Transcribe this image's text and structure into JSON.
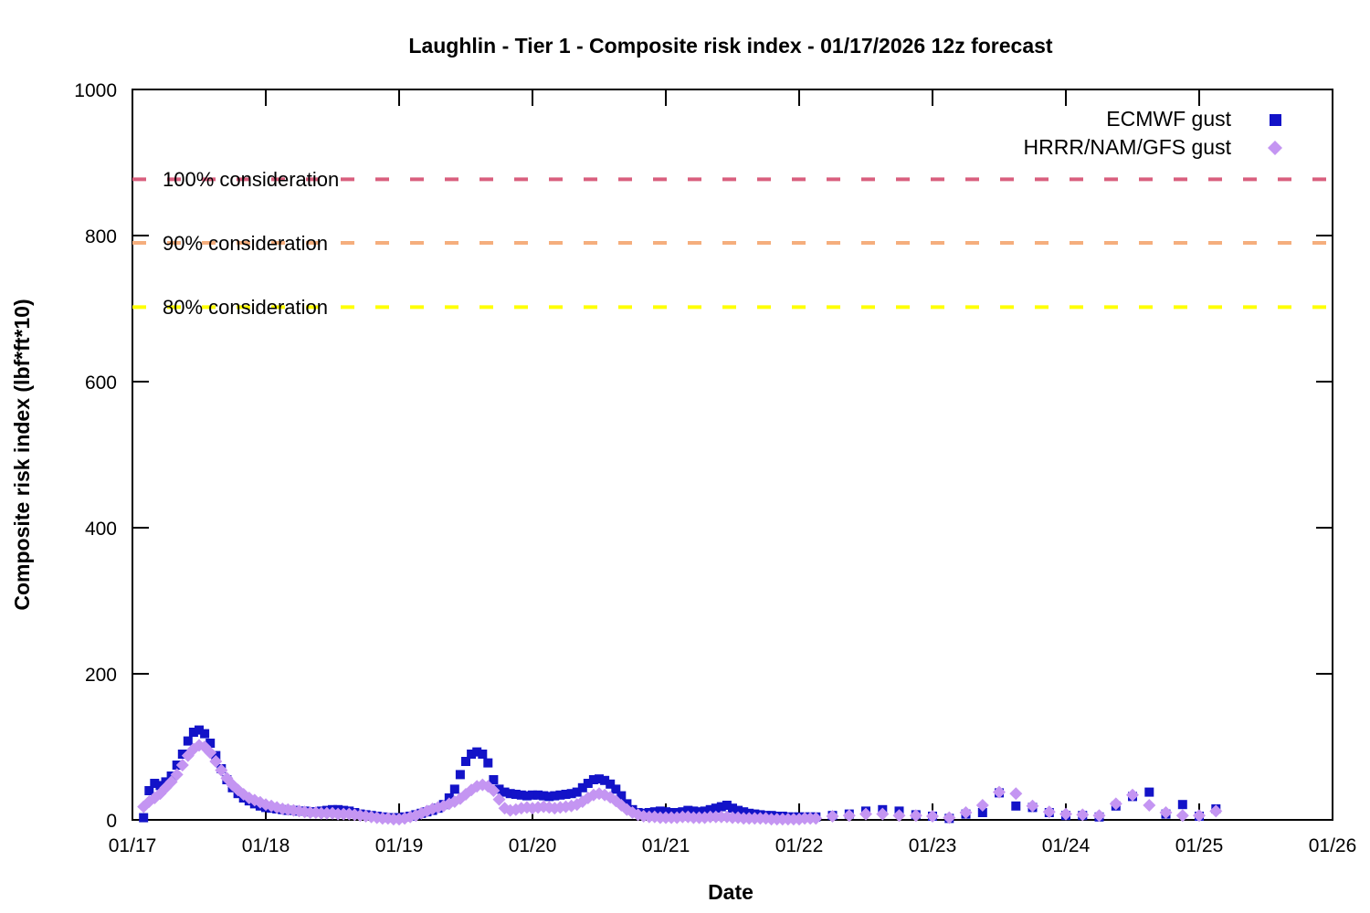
{
  "chart_data": {
    "type": "scatter",
    "title": "Laughlin - Tier 1 - Composite risk index - 01/17/2026 12z forecast",
    "xlabel": "Date",
    "ylabel": "Composite risk index (lbf*ft*10)",
    "x_unit": "hours since 01/17 00:00",
    "xlim_hours": [
      0,
      216
    ],
    "ylim": [
      0,
      1000
    ],
    "y_ticks": [
      0,
      200,
      400,
      600,
      800,
      1000
    ],
    "x_ticks": [
      {
        "hour": 0,
        "label": "01/17"
      },
      {
        "hour": 24,
        "label": "01/18"
      },
      {
        "hour": 48,
        "label": "01/19"
      },
      {
        "hour": 72,
        "label": "01/20"
      },
      {
        "hour": 96,
        "label": "01/21"
      },
      {
        "hour": 120,
        "label": "01/22"
      },
      {
        "hour": 144,
        "label": "01/23"
      },
      {
        "hour": 168,
        "label": "01/24"
      },
      {
        "hour": 192,
        "label": "01/25"
      },
      {
        "hour": 216,
        "label": "01/26"
      }
    ],
    "grid": false,
    "legend_position": "top-right-inside",
    "thresholds": [
      {
        "label": "100% consideration",
        "value": 877,
        "color": "#D95F7E",
        "style": "dashed"
      },
      {
        "label": "90% consideration",
        "value": 790,
        "color": "#F5AE7D",
        "style": "dashed"
      },
      {
        "label": "80% consideration",
        "value": 702,
        "color": "#FFFF00",
        "style": "dashed"
      }
    ],
    "series": [
      {
        "name": "ECMWF gust",
        "marker": "square",
        "color": "#1313C8",
        "points_hour_value": [
          [
            2,
            3
          ],
          [
            3,
            40
          ],
          [
            4,
            50
          ],
          [
            5,
            47
          ],
          [
            6,
            52
          ],
          [
            7,
            60
          ],
          [
            8,
            75
          ],
          [
            9,
            90
          ],
          [
            10,
            108
          ],
          [
            11,
            120
          ],
          [
            12,
            123
          ],
          [
            13,
            118
          ],
          [
            14,
            105
          ],
          [
            15,
            88
          ],
          [
            16,
            70
          ],
          [
            17,
            55
          ],
          [
            18,
            44
          ],
          [
            19,
            36
          ],
          [
            20,
            30
          ],
          [
            21,
            26
          ],
          [
            22,
            22
          ],
          [
            23,
            19
          ],
          [
            24,
            17
          ],
          [
            25,
            16
          ],
          [
            26,
            15
          ],
          [
            27,
            14
          ],
          [
            28,
            13
          ],
          [
            29,
            13
          ],
          [
            30,
            12
          ],
          [
            31,
            12
          ],
          [
            32,
            11
          ],
          [
            33,
            11
          ],
          [
            34,
            12
          ],
          [
            35,
            13
          ],
          [
            36,
            14
          ],
          [
            37,
            14
          ],
          [
            38,
            13
          ],
          [
            39,
            12
          ],
          [
            40,
            10
          ],
          [
            41,
            8
          ],
          [
            42,
            7
          ],
          [
            43,
            6
          ],
          [
            44,
            5
          ],
          [
            45,
            4
          ],
          [
            46,
            3
          ],
          [
            47,
            3
          ],
          [
            48,
            3
          ],
          [
            49,
            4
          ],
          [
            50,
            5
          ],
          [
            51,
            7
          ],
          [
            52,
            9
          ],
          [
            53,
            11
          ],
          [
            54,
            13
          ],
          [
            55,
            16
          ],
          [
            56,
            21
          ],
          [
            57,
            30
          ],
          [
            58,
            42
          ],
          [
            59,
            62
          ],
          [
            60,
            80
          ],
          [
            61,
            90
          ],
          [
            62,
            93
          ],
          [
            63,
            90
          ],
          [
            64,
            78
          ],
          [
            65,
            55
          ],
          [
            66,
            42
          ],
          [
            67,
            38
          ],
          [
            68,
            36
          ],
          [
            69,
            35
          ],
          [
            70,
            34
          ],
          [
            71,
            33
          ],
          [
            72,
            34
          ],
          [
            73,
            34
          ],
          [
            74,
            33
          ],
          [
            75,
            32
          ],
          [
            76,
            33
          ],
          [
            77,
            34
          ],
          [
            78,
            35
          ],
          [
            79,
            36
          ],
          [
            80,
            38
          ],
          [
            81,
            44
          ],
          [
            82,
            50
          ],
          [
            83,
            55
          ],
          [
            84,
            56
          ],
          [
            85,
            54
          ],
          [
            86,
            49
          ],
          [
            87,
            42
          ],
          [
            88,
            33
          ],
          [
            89,
            22
          ],
          [
            90,
            14
          ],
          [
            91,
            10
          ],
          [
            92,
            9
          ],
          [
            93,
            10
          ],
          [
            94,
            11
          ],
          [
            95,
            12
          ],
          [
            96,
            11
          ],
          [
            97,
            10
          ],
          [
            98,
            10
          ],
          [
            99,
            11
          ],
          [
            100,
            13
          ],
          [
            101,
            12
          ],
          [
            102,
            11
          ],
          [
            103,
            12
          ],
          [
            104,
            14
          ],
          [
            105,
            16
          ],
          [
            106,
            18
          ],
          [
            107,
            20
          ],
          [
            108,
            16
          ],
          [
            109,
            13
          ],
          [
            110,
            11
          ],
          [
            111,
            9
          ],
          [
            112,
            8
          ],
          [
            113,
            7
          ],
          [
            114,
            6
          ],
          [
            115,
            6
          ],
          [
            116,
            5
          ],
          [
            117,
            5
          ],
          [
            118,
            4
          ],
          [
            119,
            4
          ],
          [
            120,
            4
          ],
          [
            121,
            4
          ],
          [
            122,
            4
          ],
          [
            123,
            4
          ],
          [
            126,
            6
          ],
          [
            129,
            8
          ],
          [
            132,
            12
          ],
          [
            135,
            14
          ],
          [
            138,
            12
          ],
          [
            141,
            7
          ],
          [
            144,
            5
          ],
          [
            147,
            2
          ],
          [
            150,
            8
          ],
          [
            153,
            10
          ],
          [
            156,
            37
          ],
          [
            159,
            19
          ],
          [
            162,
            17
          ],
          [
            165,
            10
          ],
          [
            168,
            6
          ],
          [
            171,
            6
          ],
          [
            174,
            4
          ],
          [
            177,
            19
          ],
          [
            180,
            32
          ],
          [
            183,
            38
          ],
          [
            186,
            8
          ],
          [
            189,
            21
          ],
          [
            192,
            5
          ],
          [
            195,
            15
          ]
        ]
      },
      {
        "name": "HRRR/NAM/GFS gust",
        "marker": "diamond",
        "color": "#C495F2",
        "points_hour_value": [
          [
            2,
            18
          ],
          [
            3,
            25
          ],
          [
            4,
            30
          ],
          [
            5,
            36
          ],
          [
            6,
            44
          ],
          [
            7,
            52
          ],
          [
            8,
            62
          ],
          [
            9,
            75
          ],
          [
            10,
            88
          ],
          [
            11,
            97
          ],
          [
            12,
            102
          ],
          [
            13,
            100
          ],
          [
            14,
            92
          ],
          [
            15,
            80
          ],
          [
            16,
            68
          ],
          [
            17,
            57
          ],
          [
            18,
            48
          ],
          [
            19,
            41
          ],
          [
            20,
            35
          ],
          [
            21,
            30
          ],
          [
            22,
            27
          ],
          [
            23,
            24
          ],
          [
            24,
            21
          ],
          [
            25,
            19
          ],
          [
            26,
            17
          ],
          [
            27,
            15
          ],
          [
            28,
            14
          ],
          [
            29,
            13
          ],
          [
            30,
            12
          ],
          [
            31,
            11
          ],
          [
            32,
            10
          ],
          [
            33,
            10
          ],
          [
            34,
            9
          ],
          [
            35,
            9
          ],
          [
            36,
            9
          ],
          [
            37,
            8
          ],
          [
            38,
            8
          ],
          [
            39,
            8
          ],
          [
            40,
            7
          ],
          [
            41,
            6
          ],
          [
            42,
            5
          ],
          [
            43,
            4
          ],
          [
            44,
            3
          ],
          [
            45,
            2
          ],
          [
            46,
            2
          ],
          [
            47,
            1
          ],
          [
            48,
            1
          ],
          [
            49,
            2
          ],
          [
            50,
            4
          ],
          [
            51,
            6
          ],
          [
            52,
            9
          ],
          [
            53,
            12
          ],
          [
            54,
            15
          ],
          [
            55,
            17
          ],
          [
            56,
            19
          ],
          [
            57,
            22
          ],
          [
            58,
            25
          ],
          [
            59,
            29
          ],
          [
            60,
            35
          ],
          [
            61,
            41
          ],
          [
            62,
            46
          ],
          [
            63,
            48
          ],
          [
            64,
            46
          ],
          [
            65,
            40
          ],
          [
            66,
            28
          ],
          [
            67,
            16
          ],
          [
            68,
            13
          ],
          [
            69,
            14
          ],
          [
            70,
            16
          ],
          [
            71,
            17
          ],
          [
            72,
            16
          ],
          [
            73,
            17
          ],
          [
            74,
            18
          ],
          [
            75,
            17
          ],
          [
            76,
            16
          ],
          [
            77,
            17
          ],
          [
            78,
            18
          ],
          [
            79,
            19
          ],
          [
            80,
            21
          ],
          [
            81,
            25
          ],
          [
            82,
            30
          ],
          [
            83,
            34
          ],
          [
            84,
            36
          ],
          [
            85,
            34
          ],
          [
            86,
            31
          ],
          [
            87,
            26
          ],
          [
            88,
            20
          ],
          [
            89,
            14
          ],
          [
            90,
            10
          ],
          [
            91,
            7
          ],
          [
            92,
            5
          ],
          [
            93,
            4
          ],
          [
            94,
            4
          ],
          [
            95,
            3
          ],
          [
            96,
            3
          ],
          [
            97,
            3
          ],
          [
            98,
            3
          ],
          [
            99,
            4
          ],
          [
            100,
            4
          ],
          [
            101,
            3
          ],
          [
            102,
            3
          ],
          [
            103,
            3
          ],
          [
            104,
            4
          ],
          [
            105,
            4
          ],
          [
            106,
            4
          ],
          [
            107,
            4
          ],
          [
            108,
            3
          ],
          [
            109,
            3
          ],
          [
            110,
            2
          ],
          [
            111,
            2
          ],
          [
            112,
            2
          ],
          [
            113,
            2
          ],
          [
            114,
            2
          ],
          [
            115,
            1
          ],
          [
            116,
            1
          ],
          [
            117,
            1
          ],
          [
            118,
            1
          ],
          [
            119,
            1
          ],
          [
            120,
            1
          ],
          [
            121,
            2
          ],
          [
            122,
            2
          ],
          [
            123,
            2
          ],
          [
            126,
            5
          ],
          [
            129,
            6
          ],
          [
            132,
            8
          ],
          [
            135,
            8
          ],
          [
            138,
            6
          ],
          [
            141,
            6
          ],
          [
            144,
            5
          ],
          [
            147,
            3
          ],
          [
            150,
            10
          ],
          [
            153,
            20
          ],
          [
            156,
            38
          ],
          [
            159,
            36
          ],
          [
            162,
            19
          ],
          [
            165,
            11
          ],
          [
            168,
            8
          ],
          [
            171,
            7
          ],
          [
            174,
            6
          ],
          [
            177,
            22
          ],
          [
            180,
            34
          ],
          [
            183,
            20
          ],
          [
            186,
            10
          ],
          [
            189,
            6
          ],
          [
            192,
            6
          ],
          [
            195,
            12
          ]
        ]
      }
    ]
  }
}
